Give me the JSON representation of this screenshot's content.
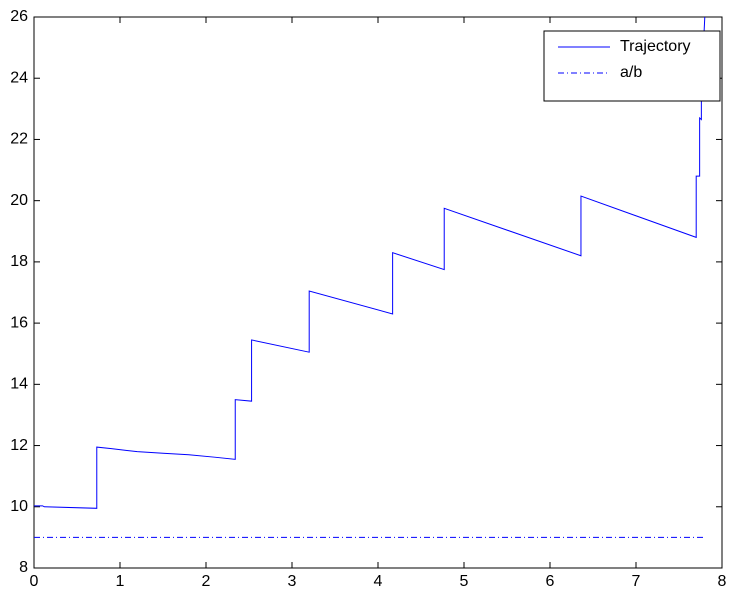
{
  "chart_data": {
    "type": "line",
    "series": [
      {
        "name": "Trajectory",
        "color": "#0000ff",
        "style": "-",
        "x": [
          0,
          0.1,
          0.12,
          0.73,
          0.73,
          0.9,
          1.2,
          1.5,
          1.8,
          2.1,
          2.34,
          2.34,
          2.53,
          2.53,
          3.2,
          3.2,
          4.17,
          4.17,
          4.77,
          4.77,
          6.36,
          6.36,
          7.7,
          7.7,
          7.74,
          7.74,
          7.76,
          7.76,
          7.8
        ],
        "values": [
          10.03,
          10.03,
          10,
          9.95,
          11.95,
          11.9,
          11.8,
          11.75,
          11.7,
          11.62,
          11.55,
          13.5,
          13.45,
          15.45,
          15.05,
          17.05,
          16.3,
          18.3,
          17.75,
          19.75,
          18.2,
          20.15,
          18.8,
          20.8,
          20.8,
          22.7,
          22.65,
          23.7,
          26
        ]
      },
      {
        "name": "a/b",
        "color": "#0000ff",
        "style": "-.",
        "x": [
          0,
          7.8
        ],
        "values": [
          9,
          9
        ]
      }
    ],
    "xlim": [
      0,
      8
    ],
    "xticks": [
      0,
      1,
      2,
      3,
      4,
      5,
      6,
      7,
      8
    ],
    "ylim": [
      8,
      26
    ],
    "yticks": [
      8,
      10,
      12,
      14,
      16,
      18,
      20,
      22,
      24,
      26
    ],
    "grid": false,
    "legend": "upper right"
  }
}
